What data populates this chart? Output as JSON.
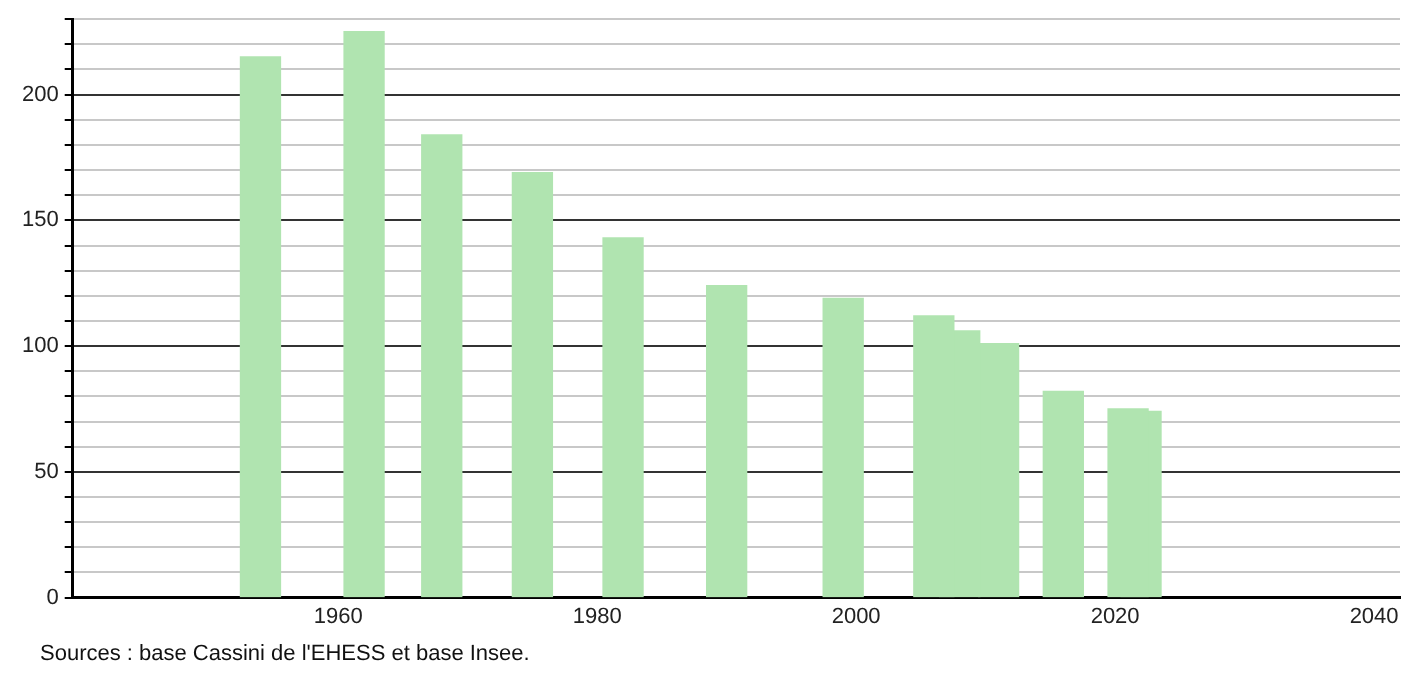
{
  "chart_data": {
    "type": "bar",
    "x": [
      1954,
      1962,
      1968,
      1975,
      1982,
      1990,
      1999,
      2006,
      2008,
      2011,
      2016,
      2021,
      2022
    ],
    "values": [
      215,
      225,
      184,
      169,
      143,
      124,
      119,
      112,
      106,
      101,
      82,
      75,
      74
    ],
    "color": "#b0e4b0",
    "xlim": [
      1939.5,
      2042
    ],
    "xticks": [
      1960,
      1980,
      2000,
      2020,
      2040
    ],
    "ylim": [
      0,
      230
    ],
    "yticks": [
      0,
      {
        "value": 10,
        "label": null
      },
      {
        "value": 20,
        "label": null
      },
      {
        "value": 30,
        "label": null
      },
      {
        "value": 40,
        "label": null
      },
      50,
      {
        "value": 60,
        "label": null
      },
      {
        "value": 70,
        "label": null
      },
      {
        "value": 80,
        "label": null
      },
      {
        "value": 90,
        "label": null
      },
      100,
      {
        "value": 110,
        "label": null
      },
      {
        "value": 120,
        "label": null
      },
      {
        "value": 130,
        "label": null
      },
      {
        "value": 140,
        "label": null
      },
      150,
      {
        "value": 160,
        "label": null
      },
      {
        "value": 170,
        "label": null
      },
      {
        "value": 180,
        "label": null
      },
      {
        "value": 190,
        "label": null
      },
      200,
      {
        "value": 210,
        "label": null
      },
      {
        "value": 220,
        "label": null
      },
      {
        "value": 230,
        "label": null
      }
    ],
    "grid": "y",
    "annotations": [
      "Sources : base Cassini de l'EHESS et base Insee."
    ]
  }
}
